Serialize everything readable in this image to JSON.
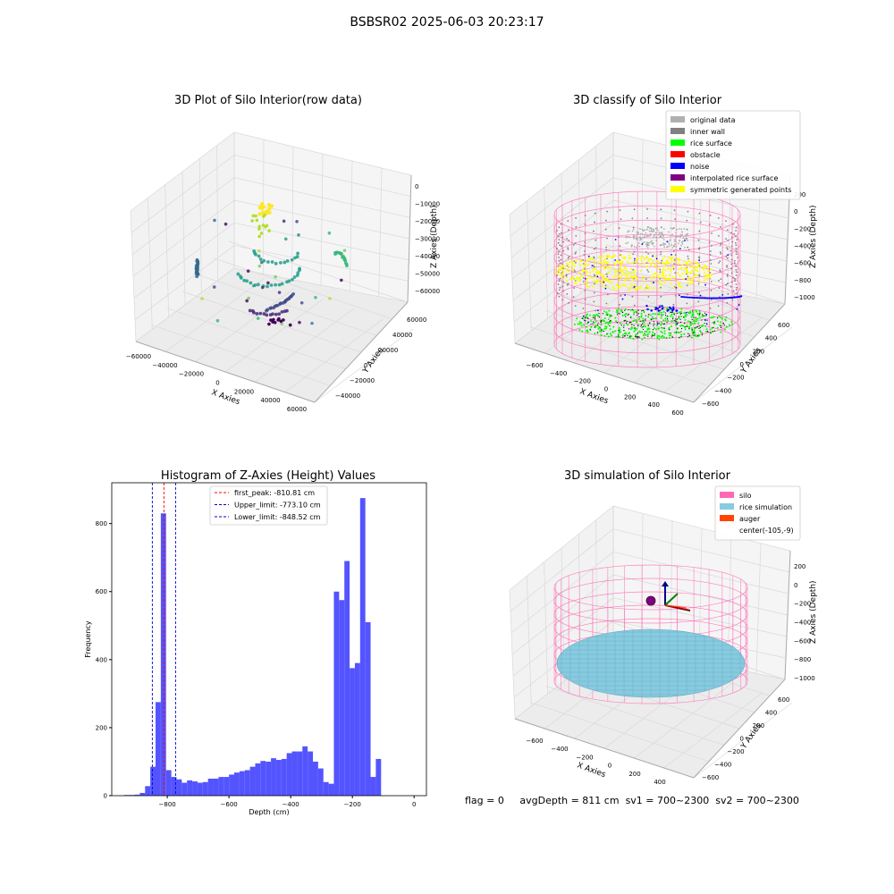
{
  "figure": {
    "suptitle": "BSBSR02 2025-06-03 20:23:17",
    "status": {
      "flag": "flag = 0",
      "avg_depth": "avgDepth = 811 cm",
      "sv1": "sv1 = 700~2300",
      "sv2": "sv2 = 700~2300"
    }
  },
  "colors": {
    "histogram_bar": "#4b4bff",
    "peak_line": "#ff0000",
    "limit_line": "#0000cc",
    "silo": "#ff69b4",
    "rice_simulation": "#87cbe0",
    "auger": "#ff4500",
    "original_data": "#b0b0b0",
    "inner_wall": "#808080",
    "rice_surface": "#00ff00",
    "obstacle": "#ff0000",
    "noise": "#0000ff",
    "interpolated_rice_surface": "#800080",
    "symmetric_generated_points": "#ffff00"
  },
  "chart_data": [
    {
      "type": "scatter",
      "projection": "3d",
      "title": "3D Plot of Silo Interior(row data)",
      "xlabel": "X Axies",
      "ylabel": "Y Axies",
      "zlabel": "Z Axies (Depth)",
      "x_ticks": [
        "−60000",
        "−40000",
        "−20000",
        "0",
        "20000",
        "40000",
        "60000"
      ],
      "y_ticks": [
        "−40000",
        "−20000",
        "0",
        "20000",
        "40000",
        "60000"
      ],
      "z_ticks": [
        "0",
        "−10000",
        "−20000",
        "−30000",
        "−40000",
        "−50000",
        "−60000"
      ],
      "colormap": "viridis"
    },
    {
      "type": "scatter",
      "projection": "3d",
      "title": "3D classify of Silo Interior",
      "xlabel": "X Axies",
      "ylabel": "Y Axies",
      "zlabel": "Z Axies (Depth)",
      "x_ticks": [
        "−600",
        "−400",
        "−200",
        "0",
        "200",
        "400",
        "600"
      ],
      "y_ticks": [
        "−600",
        "−400",
        "−200",
        "0",
        "200",
        "400",
        "600"
      ],
      "z_ticks": [
        "200",
        "0",
        "−200",
        "−400",
        "−600",
        "−800",
        "−1000"
      ],
      "legend_position": "top-right",
      "legend": [
        "original data",
        "inner wall",
        "rice surface",
        "obstacle",
        "noise",
        "interpolated rice surface",
        "symmetric generated points"
      ]
    },
    {
      "type": "bar",
      "title": "Histogram of Z-Axies (Height) Values",
      "xlabel": "Depth (cm)",
      "ylabel": "Frequency",
      "xlim": [
        -980,
        40
      ],
      "ylim": [
        0,
        920
      ],
      "x_ticks": [
        -800,
        -600,
        -400,
        -200,
        0
      ],
      "y_ticks": [
        0,
        200,
        400,
        600,
        800
      ],
      "bin_edges_start": -940,
      "bin_width": 17,
      "values": [
        2,
        2,
        3,
        8,
        28,
        85,
        275,
        830,
        75,
        55,
        48,
        38,
        45,
        42,
        38,
        40,
        50,
        50,
        55,
        55,
        62,
        68,
        72,
        75,
        85,
        95,
        102,
        100,
        110,
        105,
        108,
        125,
        130,
        130,
        145,
        130,
        100,
        80,
        40,
        35,
        600,
        575,
        690,
        375,
        390,
        875,
        510,
        55,
        108
      ],
      "lines": [
        {
          "label": "first_peak: -810.81 cm",
          "x": -810.81,
          "style": "peak"
        },
        {
          "label": "Upper_limit: -773.10 cm",
          "x": -773.1,
          "style": "limit"
        },
        {
          "label": "Lower_limit: -848.52 cm",
          "x": -848.52,
          "style": "limit"
        }
      ],
      "legend_position": "top-center"
    },
    {
      "type": "scatter",
      "projection": "3d",
      "title": "3D simulation of Silo Interior",
      "xlabel": "X Axies",
      "ylabel": "Y Axies",
      "zlabel": "Z Axies (Depth)",
      "x_ticks": [
        "−600",
        "−400",
        "−200",
        "0",
        "200",
        "400"
      ],
      "y_ticks": [
        "−600",
        "−400",
        "−200",
        "0",
        "200",
        "400",
        "600"
      ],
      "z_ticks": [
        "200",
        "0",
        "−200",
        "−400",
        "−600",
        "−800",
        "−1000"
      ],
      "legend_position": "top-right",
      "legend": [
        "silo",
        "rice simulation",
        "auger",
        "center(-105,-9)"
      ]
    }
  ]
}
